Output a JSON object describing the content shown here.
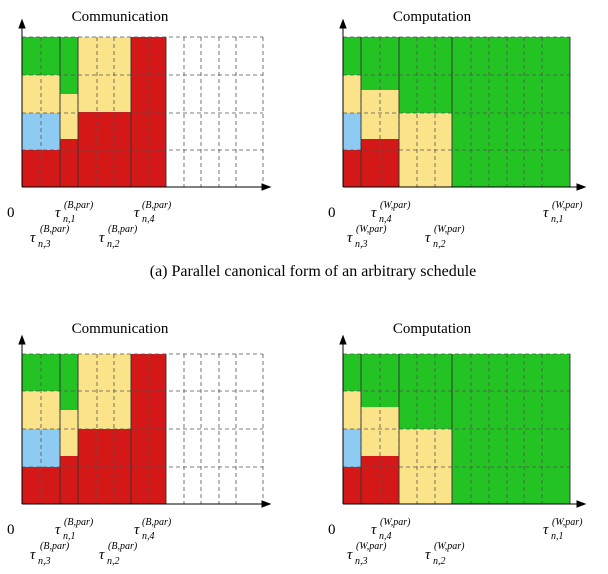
{
  "colors": {
    "green": "#22c322",
    "yellow": "#fbe38a",
    "blue": "#8ecbf2",
    "red": "#d41717",
    "grid": "#555555"
  },
  "diagrams": [
    {
      "id": "a",
      "caption": "(a) Parallel canonical form of an arbitrary schedule",
      "panels": [
        {
          "title": "Communication",
          "origin_label": "0",
          "labels_upper": [
            {
              "base": "τ",
              "sub": "n,1",
              "sup": "(B,par)"
            },
            {
              "base": "τ",
              "sub": "n,4",
              "sup": "(B,par)"
            }
          ],
          "labels_lower": [
            {
              "base": "τ",
              "sub": "n,3",
              "sup": "(B,par)"
            },
            {
              "base": "τ",
              "sub": "n,2",
              "sup": "(B,par)"
            }
          ]
        },
        {
          "title": "Computation",
          "origin_label": "0",
          "labels_upper": [
            {
              "base": "τ",
              "sub": "n,4",
              "sup": "(W,par)"
            },
            {
              "base": "τ",
              "sub": "n,1",
              "sup": "(W,par)"
            }
          ],
          "labels_lower": [
            {
              "base": "τ",
              "sub": "n,3",
              "sup": "(W,par)"
            },
            {
              "base": "τ",
              "sub": "n,2",
              "sup": "(W,par)"
            }
          ]
        }
      ]
    },
    {
      "id": "b",
      "caption": "",
      "panels": [
        {
          "title": "Communication",
          "origin_label": "0",
          "labels_upper": [
            {
              "base": "τ",
              "sub": "n,1",
              "sup": "(B,par)"
            },
            {
              "base": "τ",
              "sub": "n,4",
              "sup": "(B,par)"
            }
          ],
          "labels_lower": [
            {
              "base": "τ",
              "sub": "n,3",
              "sup": "(B,par)"
            },
            {
              "base": "τ",
              "sub": "n,2",
              "sup": "(B,par)"
            }
          ]
        },
        {
          "title": "Computation",
          "origin_label": "0",
          "labels_upper": [
            {
              "base": "τ",
              "sub": "n,4",
              "sup": "(W,par)"
            },
            {
              "base": "τ",
              "sub": "n,1",
              "sup": "(W,par)"
            }
          ],
          "labels_lower": [
            {
              "base": "τ",
              "sub": "n,3",
              "sup": "(W,par)"
            },
            {
              "base": "τ",
              "sub": "n,2",
              "sup": "(W,par)"
            }
          ]
        }
      ]
    }
  ]
}
